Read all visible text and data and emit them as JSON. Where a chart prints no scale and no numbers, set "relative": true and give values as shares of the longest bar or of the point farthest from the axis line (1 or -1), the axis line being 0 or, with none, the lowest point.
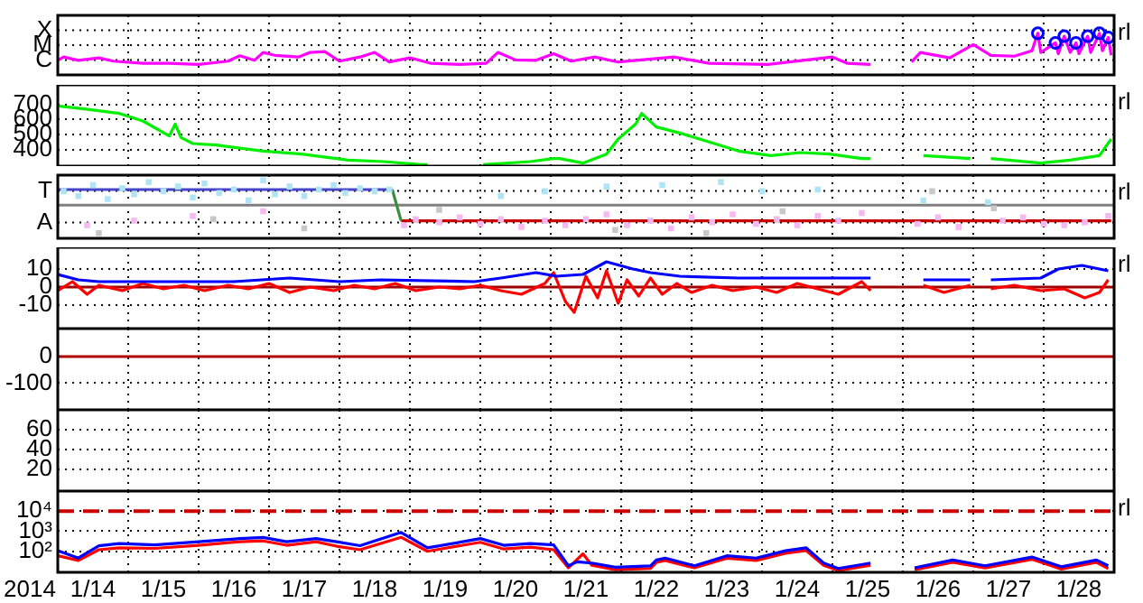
{
  "chart_data": [
    {
      "type": "line",
      "xlim": [
        "2014-01-14",
        "2014-01-29"
      ],
      "xticks": [
        {
          "value": "2014-01-15",
          "label": null
        },
        {
          "value": "2014-01-16",
          "label": null
        },
        {
          "value": "2014-01-17",
          "label": null
        },
        {
          "value": "2014-01-18",
          "label": null
        },
        {
          "value": "2014-01-19",
          "label": null
        },
        {
          "value": "2014-01-20",
          "label": null
        },
        {
          "value": "2014-01-21",
          "label": null
        },
        {
          "value": "2014-01-22",
          "label": null
        },
        {
          "value": "2014-01-23",
          "label": null
        },
        {
          "value": "2014-01-24",
          "label": null
        },
        {
          "value": "2014-01-25",
          "label": null
        },
        {
          "value": "2014-01-26",
          "label": null
        },
        {
          "value": "2014-01-27",
          "label": null
        },
        {
          "value": "2014-01-28",
          "label": null
        }
      ],
      "relative": true,
      "grid": true,
      "tick_labels": false,
      "annotations": [
        "rl",
        "X",
        "M",
        "C"
      ],
      "series": [
        {
          "type": "scatter",
          "marker": "circle",
          "color": "#0000ff",
          "x": [
            "2014-01-27T22:00",
            "2014-01-28T04:00",
            "2014-01-28T07:00",
            "2014-01-28T11:00",
            "2014-01-28T15:00",
            "2014-01-28T19:00",
            "2014-01-28T22:00"
          ],
          "values": [
            1,
            0.77,
            0.93,
            0.77,
            0.93,
            1,
            0.9
          ]
        },
        {
          "color": "#ff00ff",
          "x": [
            "2014-01-14T00:00",
            "2014-01-14T02:00",
            "2014-01-14T07:00",
            "2014-01-14T14:00",
            "2014-01-14T19:00",
            "2014-01-15T05:00",
            "2014-01-15T14:00",
            "2014-01-16T00:00",
            "2014-01-16T10:00",
            "2014-01-16T14:00",
            "2014-01-16T19:00",
            "2014-01-16T22:00",
            "2014-01-17T02:00",
            "2014-01-17T10:00",
            "2014-01-17T14:00",
            "2014-01-17T19:00",
            "2014-01-18T00:00",
            "2014-01-18T07:00",
            "2014-01-18T12:00",
            "2014-01-18T17:00",
            "2014-01-19T00:00",
            "2014-01-19T07:00",
            "2014-01-19T17:00",
            "2014-01-20T02:00",
            "2014-01-20T06:00",
            "2014-01-20T12:00",
            "2014-01-20T19:00",
            "2014-01-21T01:00",
            "2014-01-21T07:00",
            "2014-01-21T15:00",
            "2014-01-21T23:00",
            "2014-01-22T18:00",
            "2014-01-23T06:00",
            "2014-01-24T02:00",
            "2014-01-25T00:00",
            "2014-01-25T05:00",
            "2014-01-25T13:00",
            "2014-01-25T19:00",
            "2014-01-26T03:00",
            "2014-01-26T06:00",
            "2014-01-26T16:00",
            "2014-01-27T00:00",
            "2014-01-27T06:00",
            "2014-01-27T14:00",
            "2014-01-27T20:00",
            "2014-01-27T22:00",
            "2014-01-27T23:00",
            "2014-01-28T04:00",
            "2014-01-28T05:00",
            "2014-01-28T07:00",
            "2014-01-28T09:00",
            "2014-01-28T11:00",
            "2014-01-28T12:00",
            "2014-01-28T15:00",
            "2014-01-28T16:00",
            "2014-01-28T19:00",
            "2014-01-28T20:00",
            "2014-01-28T22:00",
            "2014-01-28T23:00"
          ],
          "values": [
            0.35,
            0.43,
            0.35,
            0.41,
            0.33,
            0.28,
            0.28,
            0.25,
            0.33,
            0.46,
            0.35,
            0.54,
            0.47,
            0.43,
            0.54,
            0.56,
            0.33,
            0.43,
            0.54,
            0.31,
            0.41,
            0.28,
            0.25,
            0.28,
            0.54,
            0.36,
            0.35,
            0.51,
            0.33,
            0.43,
            0.31,
            0.43,
            0.28,
            0.25,
            0.43,
            0.28,
            0.25,
            null,
            0.31,
            0.54,
            0.41,
            0.73,
            0.47,
            0.45,
            0.58,
            1,
            0.54,
            0.77,
            0.51,
            0.93,
            0.54,
            0.77,
            0.51,
            0.93,
            0.54,
            1,
            0.58,
            0.9,
            0.47
          ]
        }
      ]
    },
    {
      "type": "line",
      "xlim": [
        "2014-01-14",
        "2014-01-29"
      ],
      "xticks": [
        {
          "value": "2014-01-15",
          "label": null
        },
        {
          "value": "2014-01-16",
          "label": null
        },
        {
          "value": "2014-01-17",
          "label": null
        },
        {
          "value": "2014-01-18",
          "label": null
        },
        {
          "value": "2014-01-19",
          "label": null
        },
        {
          "value": "2014-01-20",
          "label": null
        },
        {
          "value": "2014-01-21",
          "label": null
        },
        {
          "value": "2014-01-22",
          "label": null
        },
        {
          "value": "2014-01-23",
          "label": null
        },
        {
          "value": "2014-01-24",
          "label": null
        },
        {
          "value": "2014-01-25",
          "label": null
        },
        {
          "value": "2014-01-26",
          "label": null
        },
        {
          "value": "2014-01-27",
          "label": null
        },
        {
          "value": "2014-01-28",
          "label": null
        }
      ],
      "ylim": [
        290,
        830
      ],
      "yticks": [
        400,
        500,
        600,
        700
      ],
      "grid": true,
      "tick_labels": "y",
      "annotations": [
        "rl"
      ],
      "series": [
        {
          "color": "#00ee00",
          "x": [
            "2014-01-14T00:00",
            "2014-01-14T09:00",
            "2014-01-14T21:00",
            "2014-01-15T05:00",
            "2014-01-15T14:00",
            "2014-01-15T16:00",
            "2014-01-15T18:00",
            "2014-01-15T22:00",
            "2014-01-16T06:00",
            "2014-01-16T22:00",
            "2014-01-17T11:00",
            "2014-01-18T03:00",
            "2014-01-18T15:00",
            "2014-01-19T04:00",
            "2014-01-19T06:00",
            "2014-01-19T14:00",
            "2014-01-20T01:00",
            "2014-01-20T17:00",
            "2014-01-21T01:00",
            "2014-01-21T03:00",
            "2014-01-21T11:00",
            "2014-01-21T19:00",
            "2014-01-21T23:00",
            "2014-01-22T05:00",
            "2014-01-22T07:00",
            "2014-01-22T12:00",
            "2014-01-22T20:00",
            "2014-01-23T06:00",
            "2014-01-23T16:00",
            "2014-01-24T03:00",
            "2014-01-24T13:00",
            "2014-01-24T23:00",
            "2014-01-25T10:00",
            "2014-01-25T13:00",
            "2014-01-25T22:00",
            "2014-01-26T07:00",
            "2014-01-26T23:00",
            "2014-01-27T02:00",
            "2014-01-27T06:00",
            "2014-01-27T23:00",
            "2014-01-28T09:00",
            "2014-01-28T19:00",
            "2014-01-28T23:00"
          ],
          "values": [
            690,
            670,
            640,
            590,
            490,
            570,
            480,
            440,
            430,
            390,
            370,
            330,
            320,
            300,
            300,
            null,
            300,
            320,
            340,
            340,
            310,
            370,
            470,
            570,
            640,
            550,
            510,
            450,
            390,
            360,
            380,
            370,
            340,
            340,
            null,
            360,
            340,
            null,
            340,
            310,
            330,
            360,
            470
          ]
        }
      ]
    },
    {
      "type": "line",
      "xlim": [
        "2014-01-14",
        "2014-01-29"
      ],
      "xticks": [
        {
          "value": "2014-01-15",
          "label": null
        },
        {
          "value": "2014-01-16",
          "label": null
        },
        {
          "value": "2014-01-17",
          "label": null
        },
        {
          "value": "2014-01-18",
          "label": null
        },
        {
          "value": "2014-01-19",
          "label": null
        },
        {
          "value": "2014-01-20",
          "label": null
        },
        {
          "value": "2014-01-21",
          "label": null
        },
        {
          "value": "2014-01-22",
          "label": null
        },
        {
          "value": "2014-01-23",
          "label": null
        },
        {
          "value": "2014-01-24",
          "label": null
        },
        {
          "value": "2014-01-25",
          "label": null
        },
        {
          "value": "2014-01-26",
          "label": null
        },
        {
          "value": "2014-01-27",
          "label": null
        },
        {
          "value": "2014-01-28",
          "label": null
        }
      ],
      "relative": true,
      "grid": true,
      "tick_labels": false,
      "annotations": [
        "rl",
        "T",
        "A"
      ],
      "ref_lines": [
        {
          "axis": "y",
          "value": 0,
          "color": "#808080"
        }
      ],
      "series": [
        {
          "color": "#4646c8",
          "x": [
            "2014-01-14T00:00",
            "2014-01-18T18:00"
          ],
          "values": [
            0.56,
            0.56
          ]
        },
        {
          "color": "#3c8c3c",
          "x": [
            "2014-01-18T18:00",
            "2014-01-18T21:00"
          ],
          "values": [
            0.56,
            -0.56
          ]
        },
        {
          "color": "#c80000",
          "x": [
            "2014-01-18T21:00",
            "2014-01-28T23:00"
          ],
          "values": [
            -0.56,
            -0.56
          ]
        },
        {
          "type": "scatter",
          "marker": "square",
          "color": "#aee4f5",
          "x": [
            "2014-01-14T02:00",
            "2014-01-14T07:00",
            "2014-01-14T12:00",
            "2014-01-14T17:00",
            "2014-01-14T22:00",
            "2014-01-15T02:00",
            "2014-01-15T07:00",
            "2014-01-15T12:00",
            "2014-01-15T17:00",
            "2014-01-15T22:00",
            "2014-01-16T02:00",
            "2014-01-16T07:00",
            "2014-01-16T12:00",
            "2014-01-16T17:00",
            "2014-01-16T22:00",
            "2014-01-17T02:00",
            "2014-01-17T07:00",
            "2014-01-17T12:00",
            "2014-01-17T17:00",
            "2014-01-17T22:00",
            "2014-01-18T02:00",
            "2014-01-18T07:00",
            "2014-01-18T12:00",
            "2014-01-18T17:00",
            "2014-01-20T07:00",
            "2014-01-20T22:00",
            "2014-01-21T19:00",
            "2014-01-22T14:00",
            "2014-01-23T10:00",
            "2014-01-24T00:00",
            "2014-01-24T19:00",
            "2014-01-26T07:00",
            "2014-01-27T05:00"
          ],
          "values": [
            0.5,
            0.33,
            0.72,
            0.22,
            0.61,
            0.39,
            0.83,
            0.5,
            0.67,
            0.28,
            0.78,
            0.44,
            0.56,
            0.17,
            0.89,
            0.39,
            0.67,
            0.33,
            0.56,
            0.72,
            0.44,
            0.61,
            0.5,
            0.56,
            0.33,
            0.5,
            0.67,
            0.72,
            0.83,
            0.5,
            0.56,
            0.17,
            0.11
          ]
        },
        {
          "type": "scatter",
          "marker": "square",
          "color": "#f5b8f0",
          "x": [
            "2014-01-14T10:00",
            "2014-01-15T02:00",
            "2014-01-15T22:00",
            "2014-01-16T22:00",
            "2014-01-18T22:00",
            "2014-01-19T02:00",
            "2014-01-19T10:00",
            "2014-01-19T17:00",
            "2014-01-20T00:00",
            "2014-01-20T07:00",
            "2014-01-20T14:00",
            "2014-01-20T22:00",
            "2014-01-21T05:00",
            "2014-01-21T12:00",
            "2014-01-21T19:00",
            "2014-01-22T02:00",
            "2014-01-22T10:00",
            "2014-01-22T17:00",
            "2014-01-23T00:00",
            "2014-01-23T07:00",
            "2014-01-23T14:00",
            "2014-01-23T22:00",
            "2014-01-24T05:00",
            "2014-01-24T12:00",
            "2014-01-24T19:00",
            "2014-01-25T02:00",
            "2014-01-25T10:00",
            "2014-01-26T05:00",
            "2014-01-26T12:00",
            "2014-01-26T19:00",
            "2014-01-27T10:00",
            "2014-01-27T17:00",
            "2014-01-28T00:00",
            "2014-01-28T07:00",
            "2014-01-28T14:00",
            "2014-01-28T22:00"
          ],
          "values": [
            -0.72,
            -0.56,
            -0.39,
            -0.22,
            -0.72,
            -0.5,
            -0.61,
            -0.44,
            -0.67,
            -0.5,
            -0.78,
            -0.56,
            -0.72,
            -0.5,
            -0.33,
            -0.72,
            -0.56,
            -0.83,
            -0.44,
            -0.61,
            -0.33,
            -0.67,
            -0.5,
            -0.72,
            -0.39,
            -0.56,
            -0.28,
            -0.67,
            -0.44,
            -0.78,
            -0.56,
            -0.44,
            -0.67,
            -0.72,
            -0.61,
            -0.39
          ]
        },
        {
          "type": "scatter",
          "marker": "square",
          "color": "#c8c8c8",
          "x": [
            "2014-01-14T14:00",
            "2014-01-16T05:00",
            "2014-01-17T12:00",
            "2014-01-19T10:00",
            "2014-01-21T22:00",
            "2014-01-23T05:00",
            "2014-01-24T07:00",
            "2014-01-26T10:00",
            "2014-01-27T07:00"
          ],
          "values": [
            -1,
            -0.5,
            -0.83,
            -0.17,
            -0.89,
            -1,
            -0.22,
            0.5,
            -0.11
          ]
        }
      ]
    },
    {
      "type": "line",
      "xlim": [
        "2014-01-14",
        "2014-01-29"
      ],
      "xticks": [
        {
          "value": "2014-01-15",
          "label": null
        },
        {
          "value": "2014-01-16",
          "label": null
        },
        {
          "value": "2014-01-17",
          "label": null
        },
        {
          "value": "2014-01-18",
          "label": null
        },
        {
          "value": "2014-01-19",
          "label": null
        },
        {
          "value": "2014-01-20",
          "label": null
        },
        {
          "value": "2014-01-21",
          "label": null
        },
        {
          "value": "2014-01-22",
          "label": null
        },
        {
          "value": "2014-01-23",
          "label": null
        },
        {
          "value": "2014-01-24",
          "label": null
        },
        {
          "value": "2014-01-25",
          "label": null
        },
        {
          "value": "2014-01-26",
          "label": null
        },
        {
          "value": "2014-01-27",
          "label": null
        },
        {
          "value": "2014-01-28",
          "label": null
        }
      ],
      "ylim": [
        -23,
        22
      ],
      "yticks": [
        -10,
        0,
        10
      ],
      "grid": true,
      "tick_labels": "y",
      "annotations": [
        "rl"
      ],
      "ref_lines": [
        {
          "axis": "y",
          "value": 0,
          "color": "#a00000"
        }
      ],
      "series": [
        {
          "color": "#0000ff",
          "x": [
            "2014-01-14T00:00",
            "2014-01-14T07:00",
            "2014-01-14T14:00",
            "2014-01-15T12:00",
            "2014-01-16T12:00",
            "2014-01-17T07:00",
            "2014-01-18T00:00",
            "2014-01-18T14:00",
            "2014-01-19T22:00",
            "2014-01-20T07:00",
            "2014-01-20T19:00",
            "2014-01-21T02:00",
            "2014-01-21T11:00",
            "2014-01-21T19:00",
            "2014-01-22T04:00",
            "2014-01-22T10:00",
            "2014-01-22T20:00",
            "2014-01-23T16:00",
            "2014-01-24T12:00",
            "2014-01-25T13:00",
            "2014-01-25T22:00",
            "2014-01-26T07:00",
            "2014-01-26T23:00",
            "2014-01-27T02:00",
            "2014-01-27T06:00",
            "2014-01-27T23:00",
            "2014-01-28T05:00",
            "2014-01-28T13:00",
            "2014-01-28T22:00"
          ],
          "values": [
            7,
            4,
            3,
            3,
            3,
            5,
            3,
            4,
            3,
            5,
            8,
            6,
            7,
            14,
            10,
            8,
            6,
            5,
            5,
            5,
            null,
            4,
            4,
            null,
            4,
            5,
            10,
            12,
            9
          ]
        },
        {
          "color": "#ff0000",
          "x": [
            "2014-01-14T00:00",
            "2014-01-14T05:00",
            "2014-01-14T10:00",
            "2014-01-14T14:00",
            "2014-01-14T22:00",
            "2014-01-15T05:00",
            "2014-01-15T12:00",
            "2014-01-15T19:00",
            "2014-01-16T02:00",
            "2014-01-16T10:00",
            "2014-01-16T17:00",
            "2014-01-17T00:00",
            "2014-01-17T07:00",
            "2014-01-17T14:00",
            "2014-01-17T22:00",
            "2014-01-18T05:00",
            "2014-01-18T12:00",
            "2014-01-18T19:00",
            "2014-01-19T02:00",
            "2014-01-19T10:00",
            "2014-01-19T17:00",
            "2014-01-20T00:00",
            "2014-01-20T07:00",
            "2014-01-20T14:00",
            "2014-01-20T22:00",
            "2014-01-21T01:00",
            "2014-01-21T05:00",
            "2014-01-21T08:00",
            "2014-01-21T12:00",
            "2014-01-21T16:00",
            "2014-01-21T19:00",
            "2014-01-21T23:00",
            "2014-01-22T02:00",
            "2014-01-22T06:00",
            "2014-01-22T10:00",
            "2014-01-22T14:00",
            "2014-01-22T19:00",
            "2014-01-23T00:00",
            "2014-01-23T07:00",
            "2014-01-23T14:00",
            "2014-01-23T22:00",
            "2014-01-24T05:00",
            "2014-01-24T12:00",
            "2014-01-24T19:00",
            "2014-01-25T02:00",
            "2014-01-25T10:00",
            "2014-01-25T13:00",
            "2014-01-25T22:00",
            "2014-01-26T07:00",
            "2014-01-26T14:00",
            "2014-01-26T23:00",
            "2014-01-27T02:00",
            "2014-01-27T06:00",
            "2014-01-27T14:00",
            "2014-01-27T23:00",
            "2014-01-28T07:00",
            "2014-01-28T14:00",
            "2014-01-28T19:00",
            "2014-01-28T22:00"
          ],
          "values": [
            -2,
            3,
            -4,
            1,
            -2,
            2,
            -1,
            1,
            -2,
            1,
            -1,
            2,
            -3,
            0,
            -2,
            1,
            -1,
            2,
            -2,
            0,
            -1,
            1,
            -2,
            -4,
            2,
            8,
            -8,
            -14,
            6,
            -6,
            9,
            -9,
            4,
            -5,
            5,
            -4,
            2,
            -3,
            1,
            -2,
            0,
            -3,
            2,
            -1,
            -4,
            3,
            -2,
            null,
            1,
            -3,
            1,
            null,
            -1,
            1,
            -2,
            -1,
            -6,
            -3,
            4
          ]
        }
      ]
    },
    {
      "type": "line",
      "xlim": [
        "2014-01-14",
        "2014-01-29"
      ],
      "xticks": [
        {
          "value": "2014-01-15",
          "label": null
        },
        {
          "value": "2014-01-16",
          "label": null
        },
        {
          "value": "2014-01-17",
          "label": null
        },
        {
          "value": "2014-01-18",
          "label": null
        },
        {
          "value": "2014-01-19",
          "label": null
        },
        {
          "value": "2014-01-20",
          "label": null
        },
        {
          "value": "2014-01-21",
          "label": null
        },
        {
          "value": "2014-01-22",
          "label": null
        },
        {
          "value": "2014-01-23",
          "label": null
        },
        {
          "value": "2014-01-24",
          "label": null
        },
        {
          "value": "2014-01-25",
          "label": null
        },
        {
          "value": "2014-01-26",
          "label": null
        },
        {
          "value": "2014-01-27",
          "label": null
        },
        {
          "value": "2014-01-28",
          "label": null
        }
      ],
      "ylim": [
        -200,
        105
      ],
      "yticks": [
        -100,
        0
      ],
      "grid": true,
      "tick_labels": "y",
      "ref_lines": [
        {
          "axis": "y",
          "value": 0,
          "color": "#b00000"
        }
      ]
    },
    {
      "type": "line",
      "xlim": [
        "2014-01-14",
        "2014-01-29"
      ],
      "xticks": [
        {
          "value": "2014-01-15",
          "label": null
        },
        {
          "value": "2014-01-16",
          "label": null
        },
        {
          "value": "2014-01-17",
          "label": null
        },
        {
          "value": "2014-01-18",
          "label": null
        },
        {
          "value": "2014-01-19",
          "label": null
        },
        {
          "value": "2014-01-20",
          "label": null
        },
        {
          "value": "2014-01-21",
          "label": null
        },
        {
          "value": "2014-01-22",
          "label": null
        },
        {
          "value": "2014-01-23",
          "label": null
        },
        {
          "value": "2014-01-24",
          "label": null
        },
        {
          "value": "2014-01-25",
          "label": null
        },
        {
          "value": "2014-01-26",
          "label": null
        },
        {
          "value": "2014-01-27",
          "label": null
        },
        {
          "value": "2014-01-28",
          "label": null
        }
      ],
      "ylim": [
        -2,
        80
      ],
      "yticks": [
        20,
        40,
        60
      ],
      "grid": true,
      "tick_labels": "y"
    },
    {
      "type": "line",
      "xlim": [
        "2014-01-14",
        "2014-01-29"
      ],
      "xticks": [
        {
          "value": "2014-01-14T12:00",
          "label": "1/14"
        },
        {
          "value": "2014-01-15",
          "label": null
        },
        {
          "value": "2014-01-15T12:00",
          "label": "1/15"
        },
        {
          "value": "2014-01-16",
          "label": null
        },
        {
          "value": "2014-01-16T12:00",
          "label": "1/16"
        },
        {
          "value": "2014-01-17",
          "label": null
        },
        {
          "value": "2014-01-17T12:00",
          "label": "1/17"
        },
        {
          "value": "2014-01-18",
          "label": null
        },
        {
          "value": "2014-01-18T12:00",
          "label": "1/18"
        },
        {
          "value": "2014-01-19",
          "label": null
        },
        {
          "value": "2014-01-19T12:00",
          "label": "1/19"
        },
        {
          "value": "2014-01-20",
          "label": null
        },
        {
          "value": "2014-01-20T12:00",
          "label": "1/20"
        },
        {
          "value": "2014-01-21",
          "label": null
        },
        {
          "value": "2014-01-21T12:00",
          "label": "1/21"
        },
        {
          "value": "2014-01-22",
          "label": null
        },
        {
          "value": "2014-01-22T12:00",
          "label": "1/22"
        },
        {
          "value": "2014-01-23",
          "label": null
        },
        {
          "value": "2014-01-23T12:00",
          "label": "1/23"
        },
        {
          "value": "2014-01-24",
          "label": null
        },
        {
          "value": "2014-01-24T12:00",
          "label": "1/24"
        },
        {
          "value": "2014-01-25",
          "label": null
        },
        {
          "value": "2014-01-25T12:00",
          "label": "1/25"
        },
        {
          "value": "2014-01-26",
          "label": null
        },
        {
          "value": "2014-01-26T12:00",
          "label": "1/26"
        },
        {
          "value": "2014-01-27",
          "label": null
        },
        {
          "value": "2014-01-27T12:00",
          "label": "1/27"
        },
        {
          "value": "2014-01-28",
          "label": null
        },
        {
          "value": "2014-01-28T12:00",
          "label": "1/28"
        }
      ],
      "log": "y",
      "ylim": [
        9,
        100000
      ],
      "yticks": [
        {
          "value": 100,
          "label": "10²"
        },
        {
          "value": 1000,
          "label": "10³"
        },
        {
          "value": 10000,
          "label": "10⁴"
        }
      ],
      "grid": true,
      "xlabel": "2014",
      "annotations": [
        "rl"
      ],
      "ref_lines": [
        {
          "axis": "y",
          "value": 10000,
          "color": "#cc0000",
          "line_style": "dashed"
        }
      ],
      "series": [
        {
          "color": "#0000ff",
          "x": [
            "2014-01-14T00:00",
            "2014-01-14T07:00",
            "2014-01-14T14:00",
            "2014-01-14T21:00",
            "2014-01-15T09:00",
            "2014-01-16T00:00",
            "2014-01-16T14:00",
            "2014-01-16T22:00",
            "2014-01-17T06:00",
            "2014-01-17T16:00",
            "2014-01-17T23:00",
            "2014-01-18T07:00",
            "2014-01-18T21:00",
            "2014-01-19T06:00",
            "2014-01-19T18:00",
            "2014-01-20T00:00",
            "2014-01-20T08:00",
            "2014-01-20T17:00",
            "2014-01-21T01:00",
            "2014-01-21T06:00",
            "2014-01-21T09:00",
            "2014-01-21T14:00",
            "2014-01-21T22:00",
            "2014-01-22T10:00",
            "2014-01-22T12:00",
            "2014-01-22T15:00",
            "2014-01-23T01:00",
            "2014-01-23T12:00",
            "2014-01-23T22:00",
            "2014-01-24T08:00",
            "2014-01-24T15:00",
            "2014-01-24T21:00",
            "2014-01-25T02:00",
            "2014-01-25T13:00",
            "2014-01-25T22:00",
            "2014-01-26T04:00",
            "2014-01-26T17:00",
            "2014-01-27T04:00",
            "2014-01-27T20:00",
            "2014-01-28T06:00",
            "2014-01-28T18:00",
            "2014-01-28T22:00"
          ],
          "values": [
            107,
            46,
            190,
            245,
            210,
            300,
            430,
            490,
            300,
            430,
            300,
            190,
            870,
            150,
            300,
            430,
            200,
            245,
            210,
            19,
            30,
            26,
            16,
            19,
            37,
            46,
            19,
            60,
            46,
            107,
            150,
            26,
            14,
            26,
            null,
            15,
            37,
            19,
            52,
            17,
            37,
            19
          ]
        },
        {
          "color": "#ff0000",
          "x": [
            "2014-01-14T00:00",
            "2014-01-14T07:00",
            "2014-01-14T14:00",
            "2014-01-14T21:00",
            "2014-01-15T09:00",
            "2014-01-16T00:00",
            "2014-01-16T14:00",
            "2014-01-16T22:00",
            "2014-01-17T06:00",
            "2014-01-17T16:00",
            "2014-01-17T23:00",
            "2014-01-18T07:00",
            "2014-01-18T21:00",
            "2014-01-19T06:00",
            "2014-01-19T18:00",
            "2014-01-20T00:00",
            "2014-01-20T08:00",
            "2014-01-20T17:00",
            "2014-01-21T01:00",
            "2014-01-21T06:00",
            "2014-01-21T11:00",
            "2014-01-21T14:00",
            "2014-01-21T22:00",
            "2014-01-22T10:00",
            "2014-01-22T12:00",
            "2014-01-22T15:00",
            "2014-01-23T01:00",
            "2014-01-23T12:00",
            "2014-01-23T22:00",
            "2014-01-24T08:00",
            "2014-01-24T15:00",
            "2014-01-24T21:00",
            "2014-01-25T02:00",
            "2014-01-25T13:00",
            "2014-01-25T22:00",
            "2014-01-26T04:00",
            "2014-01-26T17:00",
            "2014-01-27T04:00",
            "2014-01-27T20:00",
            "2014-01-28T06:00",
            "2014-01-28T18:00",
            "2014-01-28T22:00"
          ],
          "values": [
            60,
            35,
            120,
            150,
            140,
            200,
            300,
            330,
            200,
            300,
            180,
            120,
            500,
            100,
            200,
            280,
            130,
            160,
            120,
            15,
            75,
            20,
            12,
            14,
            28,
            35,
            15,
            45,
            35,
            80,
            110,
            20,
            11,
            20,
            null,
            12,
            28,
            15,
            40,
            13,
            28,
            14
          ]
        }
      ]
    }
  ]
}
